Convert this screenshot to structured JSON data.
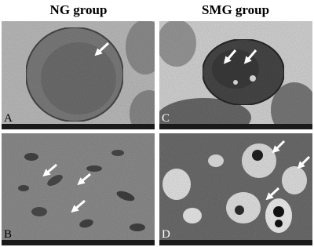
{
  "columns": [
    {
      "title": "NG group",
      "panels": [
        "A",
        "B"
      ]
    },
    {
      "title": "SMG group",
      "panels": [
        "C",
        "D"
      ]
    }
  ]
}
